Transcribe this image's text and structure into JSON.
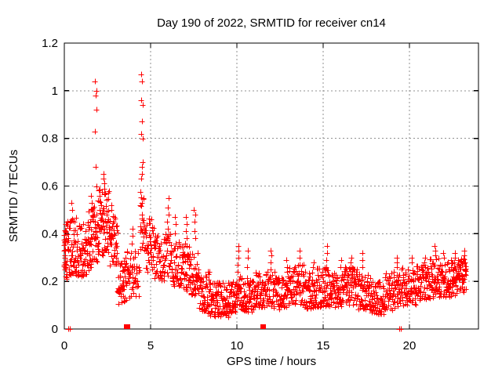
{
  "chart_data": {
    "type": "scatter",
    "title": "Day 190 of 2022, SRMTID for receiver cn14",
    "xlabel": "GPS time / hours",
    "ylabel": "SRMTID / TECUs",
    "xlim": [
      0,
      24
    ],
    "ylim": [
      0,
      1.2
    ],
    "xticks": [
      0,
      5,
      10,
      15,
      20
    ],
    "xtick_labels": [
      "0",
      "5",
      "10",
      "15",
      "20"
    ],
    "yticks": [
      0,
      0.2,
      0.4,
      0.6,
      0.8,
      1,
      1.2
    ],
    "ytick_labels": [
      "0",
      "0.2",
      "0.4",
      "0.6",
      "0.8",
      "1",
      "1.2"
    ],
    "grid": true,
    "legend": "none",
    "marker": "plus",
    "colors": {
      "marker": "#ff0000",
      "grid": "#909090",
      "border": "#000000",
      "text": "#000000",
      "background": "#ffffff"
    },
    "cluster_fields": [
      "x0",
      "x1",
      "ymin",
      "ymax",
      "n",
      "bias"
    ],
    "clusters": [
      [
        0.0,
        0.12,
        0.19,
        0.47,
        30,
        1.0
      ],
      [
        0.12,
        0.7,
        0.21,
        0.47,
        55,
        1.2
      ],
      [
        0.7,
        1.3,
        0.22,
        0.44,
        55,
        1.3
      ],
      [
        1.3,
        1.75,
        0.24,
        0.52,
        50,
        1.1
      ],
      [
        1.75,
        1.95,
        0.28,
        0.56,
        18,
        1.0
      ],
      [
        1.95,
        2.6,
        0.3,
        0.6,
        65,
        0.9
      ],
      [
        2.6,
        3.1,
        0.26,
        0.48,
        45,
        1.1
      ],
      [
        3.1,
        3.6,
        0.1,
        0.3,
        45,
        1.0
      ],
      [
        3.6,
        4.35,
        0.13,
        0.34,
        50,
        1.2
      ],
      [
        4.38,
        4.62,
        0.33,
        0.58,
        22,
        0.9
      ],
      [
        4.62,
        5.2,
        0.24,
        0.47,
        45,
        1.2
      ],
      [
        5.2,
        5.9,
        0.2,
        0.4,
        50,
        1.3
      ],
      [
        5.9,
        6.2,
        0.22,
        0.4,
        20,
        1.1
      ],
      [
        6.2,
        6.9,
        0.18,
        0.37,
        55,
        1.3
      ],
      [
        6.9,
        7.3,
        0.16,
        0.36,
        35,
        1.2
      ],
      [
        7.3,
        7.8,
        0.14,
        0.32,
        40,
        1.3
      ],
      [
        7.8,
        8.4,
        0.07,
        0.24,
        50,
        1.3
      ],
      [
        8.4,
        9.5,
        0.05,
        0.2,
        90,
        1.2
      ],
      [
        9.5,
        9.95,
        0.07,
        0.2,
        40,
        1.2
      ],
      [
        9.95,
        10.25,
        0.08,
        0.23,
        25,
        1.1
      ],
      [
        10.25,
        11.1,
        0.07,
        0.22,
        70,
        1.2
      ],
      [
        11.1,
        11.6,
        0.09,
        0.24,
        40,
        1.1
      ],
      [
        11.6,
        12.2,
        0.09,
        0.25,
        45,
        1.2
      ],
      [
        12.2,
        12.9,
        0.08,
        0.22,
        55,
        1.2
      ],
      [
        12.9,
        13.4,
        0.1,
        0.26,
        40,
        1.1
      ],
      [
        13.4,
        13.95,
        0.1,
        0.27,
        40,
        1.1
      ],
      [
        13.95,
        14.55,
        0.08,
        0.24,
        50,
        1.2
      ],
      [
        14.55,
        15.45,
        0.09,
        0.26,
        70,
        1.2
      ],
      [
        15.45,
        16.2,
        0.09,
        0.24,
        60,
        1.2
      ],
      [
        16.2,
        17.0,
        0.1,
        0.26,
        65,
        1.2
      ],
      [
        17.0,
        17.8,
        0.08,
        0.24,
        65,
        1.3
      ],
      [
        17.8,
        18.6,
        0.06,
        0.2,
        65,
        1.2
      ],
      [
        18.6,
        19.5,
        0.08,
        0.24,
        70,
        1.1
      ],
      [
        19.5,
        20.4,
        0.1,
        0.26,
        70,
        1.1
      ],
      [
        20.4,
        21.2,
        0.12,
        0.27,
        65,
        1.1
      ],
      [
        21.2,
        21.7,
        0.13,
        0.3,
        40,
        1.0
      ],
      [
        21.7,
        22.4,
        0.13,
        0.28,
        55,
        1.1
      ],
      [
        22.4,
        23.0,
        0.14,
        0.29,
        50,
        1.0
      ],
      [
        23.0,
        23.3,
        0.15,
        0.3,
        30,
        0.9
      ]
    ],
    "spike_columns": [
      {
        "x": 0.42,
        "values": [
          0.5,
          0.53
        ]
      },
      {
        "x": 1.55,
        "values": [
          0.5,
          0.53,
          0.56
        ]
      },
      {
        "x": 1.82,
        "values": [
          0.6,
          0.68,
          0.83,
          0.92,
          0.98,
          1.0,
          1.04
        ]
      },
      {
        "x": 2.28,
        "values": [
          0.59,
          0.61,
          0.63,
          0.65
        ]
      },
      {
        "x": 2.72,
        "values": [
          0.5,
          0.52
        ]
      },
      {
        "x": 3.95,
        "values": [
          0.36,
          0.39,
          0.42
        ]
      },
      {
        "x": 4.5,
        "values": [
          0.63,
          0.65,
          0.68,
          0.7,
          0.8,
          0.82,
          0.87,
          0.94,
          0.96,
          1.04,
          1.07
        ]
      },
      {
        "x": 6.0,
        "values": [
          0.42,
          0.45,
          0.48,
          0.51,
          0.55
        ]
      },
      {
        "x": 6.45,
        "values": [
          0.4,
          0.44,
          0.47
        ]
      },
      {
        "x": 7.05,
        "values": [
          0.38,
          0.41,
          0.44,
          0.47
        ]
      },
      {
        "x": 7.55,
        "values": [
          0.38,
          0.41,
          0.45,
          0.48,
          0.5
        ]
      },
      {
        "x": 10.05,
        "values": [
          0.24,
          0.27,
          0.3,
          0.33,
          0.35
        ]
      },
      {
        "x": 10.6,
        "values": [
          0.26,
          0.3,
          0.33
        ]
      },
      {
        "x": 11.95,
        "values": [
          0.25,
          0.28,
          0.31,
          0.33
        ]
      },
      {
        "x": 12.9,
        "values": [
          0.26,
          0.29
        ]
      },
      {
        "x": 13.65,
        "values": [
          0.27,
          0.3,
          0.33
        ]
      },
      {
        "x": 14.45,
        "values": [
          0.26,
          0.28
        ]
      },
      {
        "x": 15.2,
        "values": [
          0.26,
          0.29,
          0.32,
          0.35
        ]
      },
      {
        "x": 16.0,
        "values": [
          0.26,
          0.29
        ]
      },
      {
        "x": 16.6,
        "values": [
          0.28,
          0.3
        ]
      },
      {
        "x": 17.3,
        "values": [
          0.26,
          0.29,
          0.32
        ]
      },
      {
        "x": 19.25,
        "values": [
          0.26,
          0.28,
          0.3
        ]
      },
      {
        "x": 20.15,
        "values": [
          0.28,
          0.3
        ]
      },
      {
        "x": 20.9,
        "values": [
          0.28,
          0.3
        ]
      },
      {
        "x": 21.5,
        "values": [
          0.31,
          0.33,
          0.35
        ]
      },
      {
        "x": 22.0,
        "values": [
          0.3,
          0.32
        ]
      },
      {
        "x": 22.6,
        "values": [
          0.3,
          0.32
        ]
      },
      {
        "x": 23.15,
        "values": [
          0.31,
          0.33
        ]
      }
    ],
    "axis_plus_points": [
      {
        "x": 0.22,
        "y": 0
      },
      {
        "x": 0.33,
        "y": 0
      },
      {
        "x": 19.42,
        "y": 0
      },
      {
        "x": 19.52,
        "y": 0
      }
    ],
    "square_points": [
      {
        "x": 3.6,
        "y": 0.01
      },
      {
        "x": 3.66,
        "y": 0.01
      },
      {
        "x": 11.48,
        "y": 0.01
      },
      {
        "x": 11.54,
        "y": 0.01
      }
    ]
  }
}
